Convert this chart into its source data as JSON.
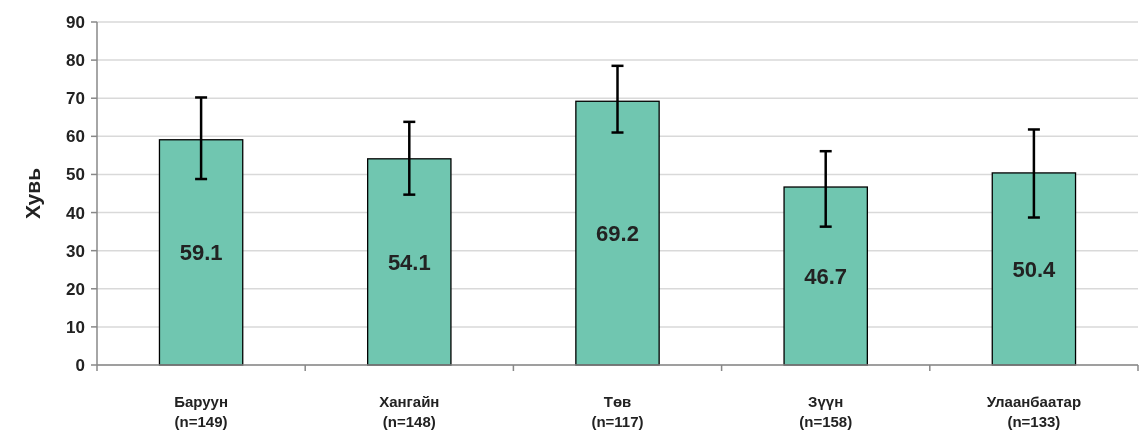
{
  "chart_data": {
    "type": "bar",
    "ylabel": "Хувь",
    "categories": [
      "Баруун\n(n=149)",
      "Хангайн\n(n=148)",
      "Төв\n(n=117)",
      "Зүүн\n(n=158)",
      "Улаанбаатар\n(n=133)"
    ],
    "values": [
      59.1,
      54.1,
      69.2,
      46.7,
      50.4
    ],
    "errors": [
      [
        48.8,
        70.2
      ],
      [
        44.7,
        63.8
      ],
      [
        61.0,
        78.5
      ],
      [
        36.3,
        56.1
      ],
      [
        38.7,
        61.8
      ]
    ],
    "color": "#70c6b0",
    "data_labels": true,
    "ylim": [
      0,
      90
    ],
    "yticks": [
      0,
      10,
      20,
      30,
      40,
      50,
      60,
      70,
      80,
      90
    ],
    "grid": "y"
  }
}
